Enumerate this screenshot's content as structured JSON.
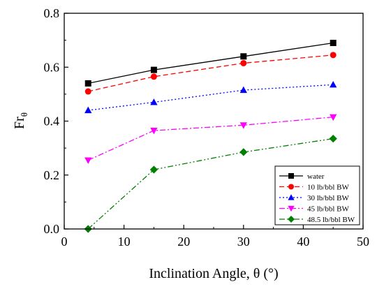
{
  "chart_data": {
    "type": "line",
    "xlabel": "Inclination Angle, θ (°)",
    "ylabel": "Fr",
    "ylabel_sub": "θ",
    "xlim": [
      0,
      50
    ],
    "ylim": [
      0.0,
      0.8
    ],
    "x_ticks": [
      "0",
      "10",
      "20",
      "30",
      "40",
      "50"
    ],
    "y_ticks": [
      "0.0",
      "0.2",
      "0.4",
      "0.6",
      "0.8"
    ],
    "grid": false,
    "legend_position": "bottom-right",
    "x": [
      4,
      15,
      30,
      45
    ],
    "series": [
      {
        "name": "water",
        "values": [
          0.54,
          0.59,
          0.64,
          0.69
        ],
        "color": "#000000",
        "dash": "solid",
        "marker": "square"
      },
      {
        "name": "10 lb/bbl BW",
        "values": [
          0.51,
          0.565,
          0.615,
          0.645
        ],
        "color": "#ff0000",
        "dash": "dashed",
        "marker": "circle"
      },
      {
        "name": "30 lb/bbl BW",
        "values": [
          0.44,
          0.47,
          0.515,
          0.535
        ],
        "color": "#0000ff",
        "dash": "dotted",
        "marker": "triangle-up"
      },
      {
        "name": "45 lb/bbl BW",
        "values": [
          0.255,
          0.365,
          0.385,
          0.415
        ],
        "color": "#ff00ff",
        "dash": "dashdot",
        "marker": "triangle-down"
      },
      {
        "name": "48.5 lb/bbl BW",
        "values": [
          0.0,
          0.22,
          0.285,
          0.335
        ],
        "color": "#008000",
        "dash": "dashdotdot",
        "marker": "diamond"
      }
    ]
  }
}
